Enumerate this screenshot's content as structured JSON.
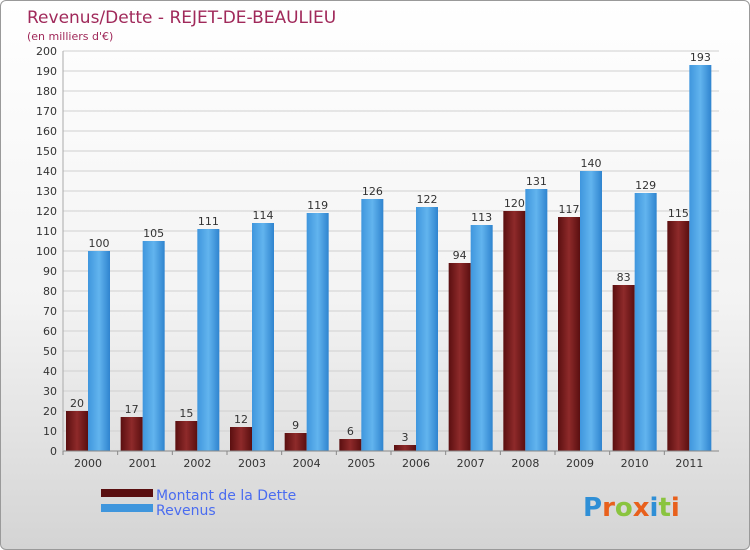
{
  "title": "Revenus/Dette - REJET-DE-BEAULIEU",
  "subtitle": "(en milliers d'€)",
  "logo": {
    "text": "Proxiti",
    "letters": [
      {
        "ch": "P",
        "color": "#2f8fd6"
      },
      {
        "ch": "r",
        "color": "#e8601c"
      },
      {
        "ch": "o",
        "color": "#8ac43f"
      },
      {
        "ch": "x",
        "color": "#e8601c"
      },
      {
        "ch": "i",
        "color": "#2f8fd6"
      },
      {
        "ch": "t",
        "color": "#8ac43f"
      },
      {
        "ch": "i",
        "color": "#e8601c"
      }
    ]
  },
  "chart_data": {
    "type": "bar",
    "title": "Revenus/Dette - REJET-DE-BEAULIEU",
    "subtitle": "(en milliers d'€)",
    "categories": [
      "2000",
      "2001",
      "2002",
      "2003",
      "2004",
      "2005",
      "2006",
      "2007",
      "2008",
      "2009",
      "2010",
      "2011"
    ],
    "series": [
      {
        "name": "Montant de la Dette",
        "color": "#7a1c1c",
        "values": [
          20,
          17,
          15,
          12,
          9,
          6,
          3,
          94,
          120,
          117,
          83,
          115
        ]
      },
      {
        "name": "Revenus",
        "color": "#4da6e8",
        "values": [
          100,
          105,
          111,
          114,
          119,
          126,
          122,
          113,
          131,
          140,
          129,
          193
        ]
      }
    ],
    "ylim": [
      0,
      200
    ],
    "yticks": [
      0,
      10,
      20,
      30,
      40,
      50,
      60,
      70,
      80,
      90,
      100,
      110,
      120,
      130,
      140,
      150,
      160,
      170,
      180,
      190,
      200
    ],
    "grid": true,
    "legend_position": "bottom-left"
  }
}
